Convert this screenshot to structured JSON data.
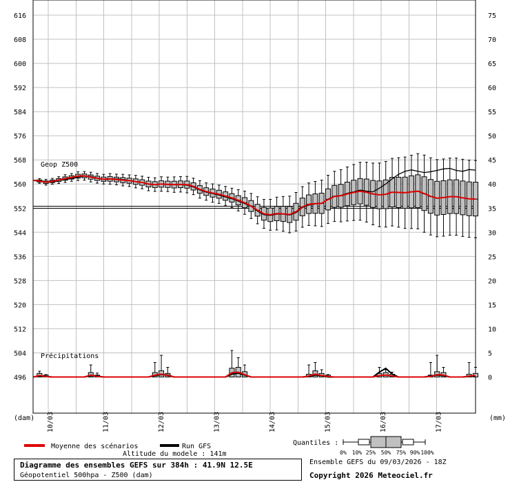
{
  "chart_data": {
    "type": "boxplot-ensemble",
    "left_axis": {
      "unit": "(dam)",
      "ticks": [
        616,
        608,
        600,
        592,
        584,
        576,
        568,
        560,
        552,
        544,
        536,
        528,
        520,
        512,
        504,
        496
      ],
      "range": [
        496,
        616
      ]
    },
    "right_axis": {
      "unit": "(mm)",
      "ticks": [
        75,
        70,
        65,
        60,
        55,
        50,
        45,
        40,
        35,
        30,
        25,
        20,
        15,
        10,
        5,
        0
      ]
    },
    "x_labels": [
      "10/03",
      "11/03",
      "12/03",
      "13/03",
      "14/03",
      "15/03",
      "16/03",
      "17/03"
    ],
    "geop_label": "Geop Z500",
    "precip_label": "Précipitations",
    "reference_line": 552.3,
    "hours_per_step": 6,
    "geop_mean": [
      561.2,
      561.0,
      560.6,
      560.9,
      561.3,
      561.8,
      562.2,
      562.6,
      562.7,
      562.3,
      561.9,
      561.6,
      561.7,
      561.5,
      561.3,
      561.1,
      560.8,
      560.5,
      560.0,
      559.8,
      560.0,
      559.9,
      559.8,
      559.9,
      559.8,
      559.2,
      558.2,
      557.5,
      557.0,
      556.6,
      556.0,
      555.4,
      554.6,
      553.8,
      552.7,
      551.3,
      550.1,
      549.8,
      550.2,
      550.1,
      549.9,
      550.8,
      552.4,
      553.3,
      553.5,
      553.6,
      554.9,
      555.9,
      556.1,
      556.7,
      557.2,
      557.6,
      557.3,
      556.7,
      556.4,
      556.6,
      557.3,
      557.2,
      557.1,
      557.4,
      557.6,
      556.8,
      555.9,
      555.3,
      555.5,
      555.8,
      555.8,
      555.4,
      555.1,
      555.0
    ],
    "geop_run": [
      561.3,
      561.2,
      560.7,
      560.5,
      561.2,
      561.5,
      561.8,
      562.3,
      562.6,
      562.5,
      562.0,
      561.5,
      561.6,
      561.7,
      561.5,
      561.2,
      560.8,
      560.5,
      559.9,
      559.7,
      560.0,
      559.8,
      559.7,
      559.8,
      559.6,
      559.0,
      558.0,
      557.3,
      556.8,
      556.3,
      555.7,
      555.1,
      554.3,
      553.5,
      552.6,
      551.0,
      549.8,
      549.6,
      550.0,
      550.0,
      549.7,
      550.5,
      552.2,
      553.0,
      553.4,
      553.5,
      555.0,
      556.0,
      556.2,
      556.9,
      557.4,
      558.0,
      557.6,
      557.4,
      558.6,
      560.0,
      561.7,
      563.2,
      564.2,
      564.7,
      564.2,
      563.8,
      564.1,
      564.5,
      565.0,
      565.2,
      564.5,
      564.2,
      564.8,
      564.6
    ],
    "geop_spread": [
      0.5,
      0.5,
      0.6,
      0.6,
      0.7,
      0.8,
      0.8,
      0.9,
      0.9,
      1.0,
      1.0,
      1.0,
      1.1,
      1.1,
      1.2,
      1.2,
      1.3,
      1.3,
      1.4,
      1.4,
      1.5,
      1.5,
      1.6,
      1.6,
      1.7,
      1.7,
      1.8,
      1.8,
      1.9,
      1.9,
      2.0,
      2.0,
      2.2,
      2.4,
      2.6,
      2.8,
      3.0,
      3.2,
      3.4,
      3.6,
      3.8,
      4.0,
      4.2,
      4.4,
      4.6,
      4.8,
      5.0,
      5.2,
      5.4,
      5.6,
      5.8,
      6.0,
      6.2,
      6.4,
      6.6,
      6.8,
      7.0,
      7.2,
      7.4,
      7.6,
      7.8,
      8.0,
      8.0,
      8.0,
      8.0,
      8.0,
      8.0,
      8.0,
      8.0,
      8.0
    ],
    "precip_mean": [
      0,
      0.3,
      0.1,
      0,
      0,
      0,
      0,
      0,
      0,
      0.4,
      0.1,
      0,
      0,
      0,
      0,
      0,
      0,
      0,
      0,
      0.4,
      0.6,
      0.3,
      0,
      0,
      0,
      0,
      0,
      0,
      0,
      0,
      0,
      0.9,
      1.0,
      0.5,
      0,
      0,
      0,
      0,
      0,
      0,
      0,
      0,
      0,
      0.2,
      0.6,
      0.3,
      0.1,
      0,
      0,
      0,
      0,
      0,
      0,
      0,
      0.3,
      0.4,
      0.2,
      0,
      0,
      0,
      0,
      0,
      0.1,
      0.5,
      0.4,
      0,
      0,
      0,
      0.2,
      0.3
    ],
    "precip_run": [
      0,
      0.2,
      0.1,
      0,
      0,
      0,
      0,
      0,
      0,
      0.3,
      0.2,
      0,
      0,
      0,
      0,
      0,
      0,
      0,
      0,
      0.3,
      0.5,
      0.4,
      0,
      0,
      0,
      0,
      0,
      0,
      0,
      0,
      0,
      0.6,
      0.8,
      0.4,
      0,
      0,
      0,
      0,
      0,
      0,
      0,
      0,
      0,
      0.1,
      0.4,
      0.3,
      0,
      0,
      0,
      0,
      0,
      0,
      0,
      0,
      1.0,
      1.8,
      0.6,
      0,
      0,
      0,
      0,
      0,
      0.2,
      0.4,
      0.3,
      0,
      0,
      0,
      0.1,
      0.2
    ],
    "precip_max": [
      0,
      1.2,
      0.5,
      0,
      0,
      0,
      0,
      0,
      0,
      2.5,
      0.8,
      0,
      0,
      0,
      0,
      0,
      0,
      0,
      0,
      3.0,
      4.5,
      2.0,
      0,
      0,
      0,
      0,
      0,
      0,
      0,
      0,
      0,
      5.5,
      4.0,
      2.5,
      0,
      0,
      0,
      0,
      0,
      0,
      0,
      0,
      0,
      2.5,
      3.0,
      1.5,
      0.5,
      0,
      0,
      0,
      0,
      0,
      0,
      0,
      2.0,
      1.5,
      1.0,
      0,
      0,
      0,
      0,
      0,
      3.0,
      4.5,
      2.0,
      0,
      0,
      0,
      3.0,
      2.0
    ],
    "legend": {
      "mean": "Moyenne des scénarios",
      "run": "Run GFS",
      "quantiles_label": "Quantiles :",
      "quantiles": [
        "0%",
        "10%",
        "25%",
        "50%",
        "75%",
        "90%",
        "100%"
      ]
    },
    "colors": {
      "mean": "#dd0000",
      "run": "#000000",
      "box": "#c0c0c0",
      "grid": "#c0c0c0"
    }
  },
  "info": {
    "altitude": "Altitude du modele : 141m",
    "title": "Diagramme des ensembles GEFS sur 384h : 41.9N 12.5E",
    "subtitle": "Géopotentiel 500hpa - Z500 (dam)",
    "ensemble_date": "Ensemble GEFS du 09/03/2026 - 18Z",
    "copyright": "Copyright 2026 Meteociel.fr"
  }
}
